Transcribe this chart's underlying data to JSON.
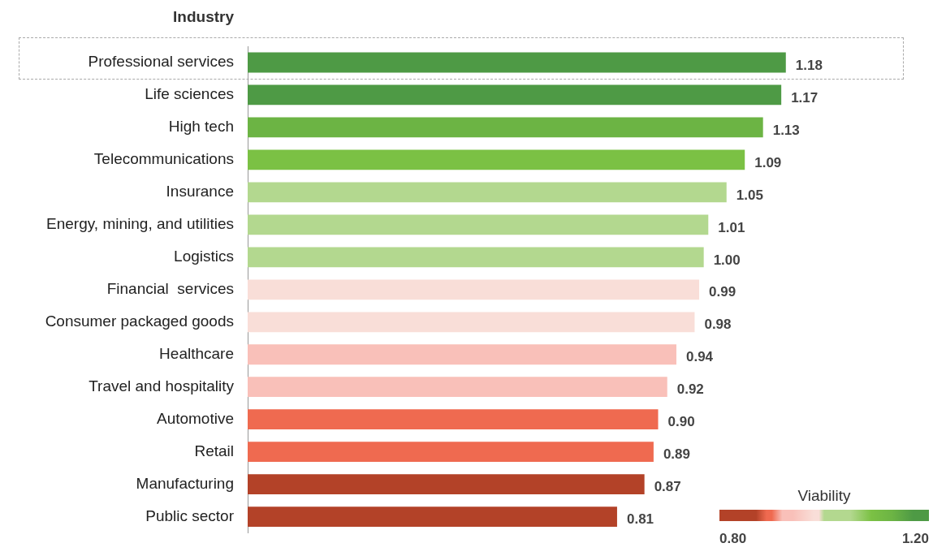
{
  "chart_data": {
    "type": "bar",
    "orientation": "horizontal",
    "ylabel": "Industry",
    "clabel": "Viability",
    "categories": [
      "Professional services",
      "Life sciences",
      "High tech",
      "Telecommunications",
      "Insurance",
      "Energy, mining, and utilities",
      "Logistics",
      "Financial  services",
      "Consumer packaged goods",
      "Healthcare",
      "Travel and hospitality",
      "Automotive",
      "Retail",
      "Manufacturing",
      "Public sector"
    ],
    "values": [
      1.18,
      1.17,
      1.13,
      1.09,
      1.05,
      1.01,
      1.0,
      0.99,
      0.98,
      0.94,
      0.92,
      0.9,
      0.89,
      0.87,
      0.81
    ],
    "value_labels": [
      "1.18",
      "1.17",
      "1.13",
      "1.09",
      "1.05",
      "1.01",
      "1.00",
      "0.99",
      "0.98",
      "0.94",
      "0.92",
      "0.90",
      "0.89",
      "0.87",
      "0.81"
    ],
    "colors": [
      "#4e9a45",
      "#4e9a45",
      "#6cb444",
      "#7bc144",
      "#b3d88f",
      "#b3d88f",
      "#b3d88f",
      "#f9ded8",
      "#f9ded8",
      "#f9c0b9",
      "#f9c0b9",
      "#ef6a50",
      "#ef6a50",
      "#b34228",
      "#b34228"
    ],
    "clim": [
      0.8,
      1.2
    ],
    "cticks": [
      {
        "value": 0.8,
        "label": "0.80"
      },
      {
        "value": 1.2,
        "label": "1.20"
      }
    ],
    "grid": false,
    "legend": false
  }
}
